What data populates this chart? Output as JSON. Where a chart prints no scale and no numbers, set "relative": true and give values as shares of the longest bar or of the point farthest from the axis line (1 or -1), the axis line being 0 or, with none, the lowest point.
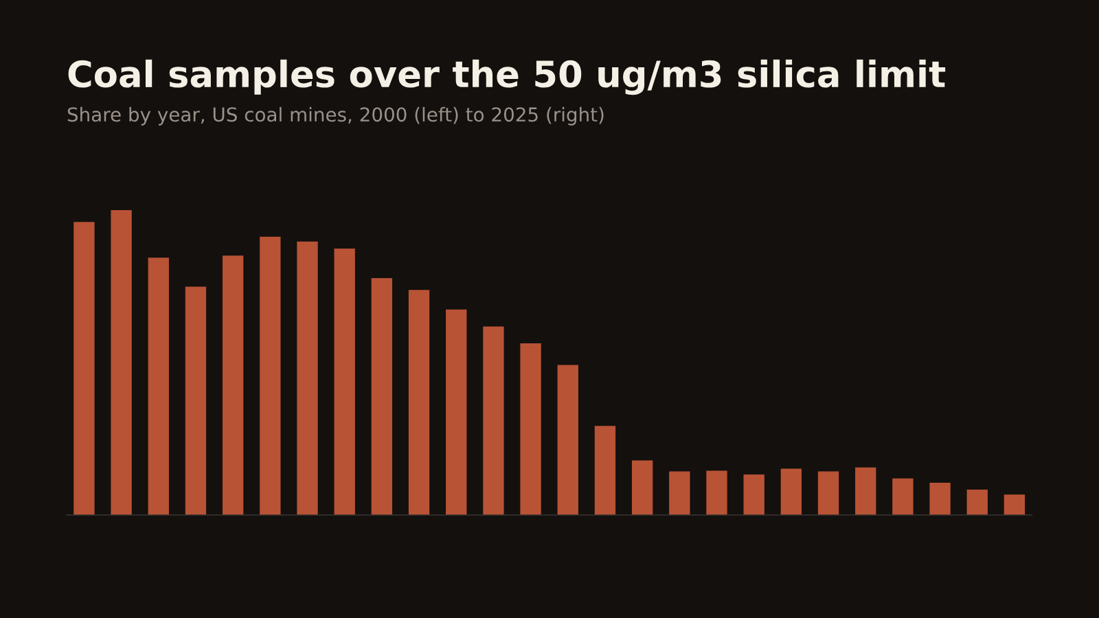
{
  "chart_data": {
    "type": "bar",
    "title": "Coal samples over the 50 ug/m3 silica limit",
    "subtitle": "Share by year, US coal mines, 2000 (left) to 2025 (right)",
    "relative": true,
    "color": "#b85335",
    "grid": false,
    "categories": [
      null,
      null,
      null,
      null,
      null,
      null,
      null,
      null,
      null,
      null,
      null,
      null,
      null,
      null,
      null,
      null,
      null,
      null,
      null,
      null,
      null,
      null,
      null,
      null,
      null,
      null
    ],
    "values": [
      0.961,
      1,
      0.844,
      0.749,
      0.851,
      0.913,
      0.897,
      0.874,
      0.777,
      0.738,
      0.674,
      0.618,
      0.563,
      0.492,
      0.292,
      0.179,
      0.143,
      0.145,
      0.133,
      0.152,
      0.143,
      0.156,
      0.12,
      0.106,
      0.083,
      0.067
    ]
  }
}
